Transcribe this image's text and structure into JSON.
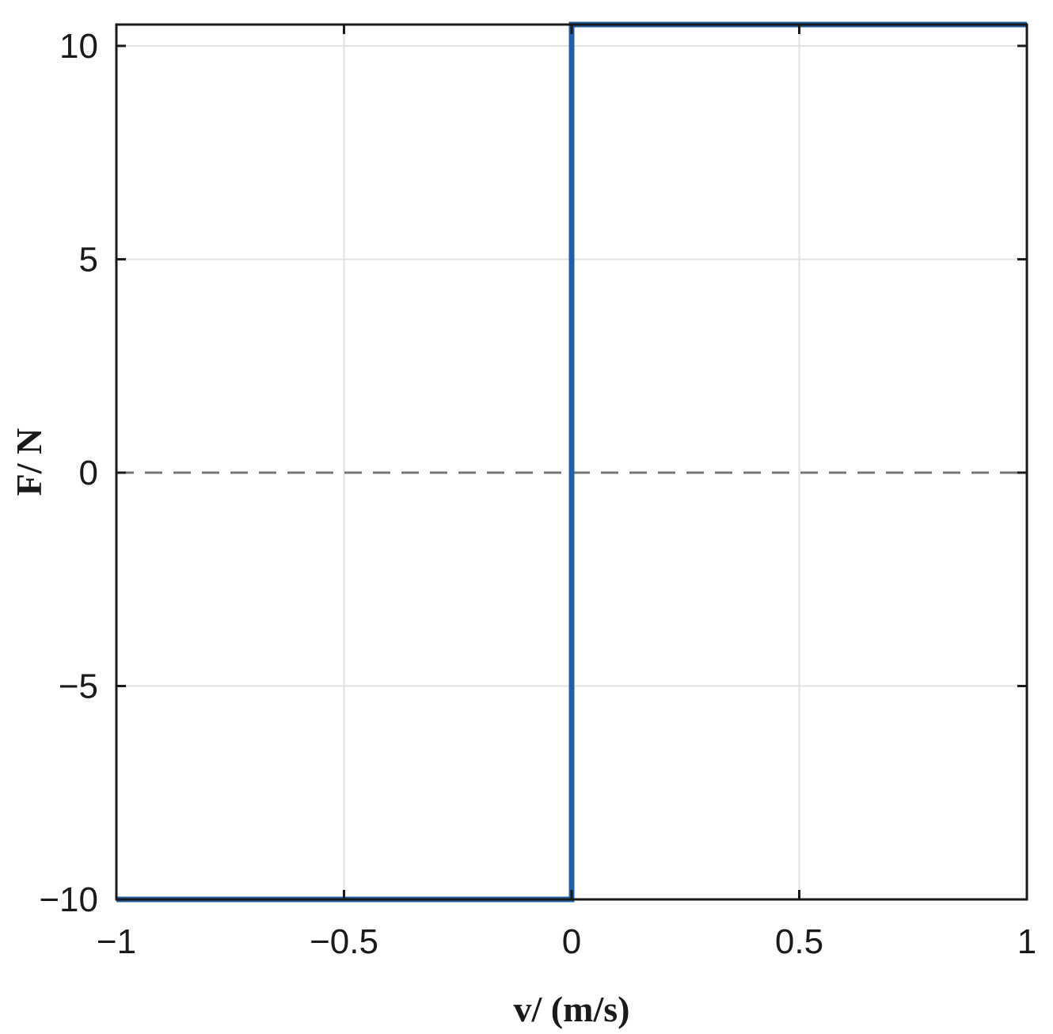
{
  "chart_data": {
    "type": "line",
    "xlabel": "v/ (m/s)",
    "ylabel": "F/ N",
    "xlim": [
      -1,
      1
    ],
    "ylim": [
      -10,
      10.5
    ],
    "grid": true,
    "x_ticks": [
      -1,
      -0.5,
      0,
      0.5,
      1
    ],
    "x_tick_labels": [
      "−1",
      "−0.5",
      "0",
      "0.5",
      "1"
    ],
    "y_ticks": [
      -10,
      -5,
      0,
      5,
      10
    ],
    "y_tick_labels": [
      "−10",
      "−5",
      "0",
      "5",
      "10"
    ],
    "reference_line": {
      "y": 0,
      "style": "dashed",
      "color": "#777777"
    },
    "series": [
      {
        "color": "#1f5fa8",
        "x": [
          -1,
          0,
          0,
          1
        ],
        "y": [
          -10,
          -10,
          10.5,
          10.5
        ]
      }
    ]
  }
}
